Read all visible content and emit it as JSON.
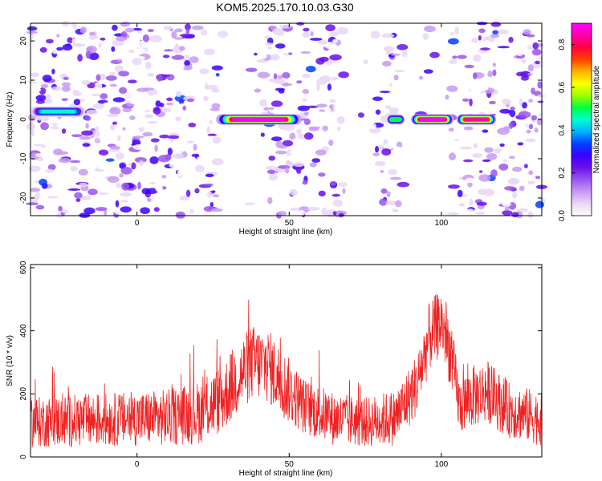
{
  "title": "KOM5.2025.170.10.03.G30",
  "colors": {
    "snr_line": "#ee2222",
    "axis": "#000000",
    "colormap": [
      "#ffffff",
      "#ead6f6",
      "#c79af2",
      "#9a55f0",
      "#6a10e8",
      "#3b00ff",
      "#0040ff",
      "#00b4ff",
      "#00ffd0",
      "#00ff40",
      "#a0ff00",
      "#ffff00",
      "#ffb000",
      "#ff4000",
      "#ff0040",
      "#ff00a8",
      "#ff00ff"
    ]
  },
  "chart_data": [
    {
      "type": "heatmap",
      "xlabel": "Height of straight line (km)",
      "ylabel": "Frequency (Hz)",
      "xlim": [
        -35,
        133
      ],
      "ylim": [
        -24.5,
        24.5
      ],
      "xticks": [
        0,
        50,
        100
      ],
      "yticks": [
        -20,
        -10,
        0,
        10,
        20
      ],
      "colorbar": {
        "label": "Normalized spectral amplitude",
        "range": [
          0.0,
          0.9
        ],
        "ticks": [
          "0.0",
          "0.2",
          "0.4",
          "0.6",
          "0.8"
        ]
      },
      "bands": [
        {
          "x": [
            26,
            54
          ],
          "f": 0,
          "peak": 0.9
        },
        {
          "x": [
            82,
            88
          ],
          "f": 0,
          "peak": 0.5
        },
        {
          "x": [
            90,
            104
          ],
          "f": 0,
          "peak": 0.9
        },
        {
          "x": [
            105,
            118
          ],
          "f": 0,
          "peak": 0.85
        },
        {
          "x": [
            -35,
            -17
          ],
          "f": 2,
          "peak": 0.45
        }
      ],
      "grid": false
    },
    {
      "type": "line",
      "xlabel": "Height of straight line (km)",
      "ylabel": "SNR (10 * v/v)",
      "xlim": [
        -35,
        133
      ],
      "ylim": [
        0,
        610
      ],
      "xticks": [
        0,
        50,
        100
      ],
      "yticks": [
        0,
        200,
        400,
        600
      ],
      "envelope": {
        "x": [
          -35,
          -20,
          -5,
          10,
          20,
          28,
          33,
          38,
          43,
          48,
          55,
          65,
          75,
          85,
          92,
          96,
          100,
          103,
          106,
          110,
          115,
          122,
          133
        ],
        "mean": [
          110,
          115,
          120,
          125,
          140,
          185,
          250,
          300,
          290,
          230,
          160,
          120,
          110,
          125,
          230,
          380,
          430,
          330,
          160,
          190,
          210,
          150,
          120
        ],
        "spread": [
          80,
          85,
          85,
          90,
          100,
          110,
          120,
          120,
          120,
          110,
          90,
          85,
          80,
          90,
          100,
          110,
          110,
          110,
          90,
          100,
          100,
          90,
          85
        ]
      },
      "grid": false
    }
  ]
}
